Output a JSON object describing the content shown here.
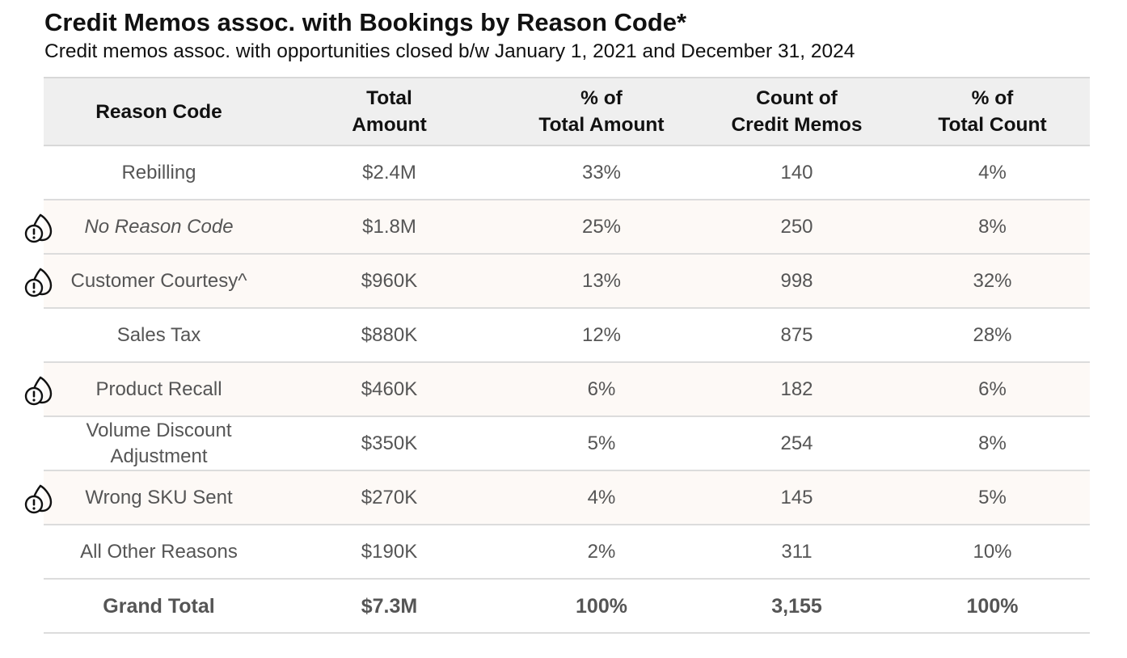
{
  "title": "Credit Memos assoc. with Bookings by Reason Code*",
  "subtitle": "Credit memos assoc. with opportunities closed b/w January 1, 2021 and December 31, 2024",
  "columns": [
    "Reason Code",
    "Total\nAmount",
    "% of\nTotal Amount",
    "Count of\nCredit Memos",
    "% of\nTotal Count"
  ],
  "chart_data": {
    "type": "table",
    "title": "Credit Memos assoc. with Bookings by Reason Code*",
    "subtitle": "Credit memos assoc. with opportunities closed b/w January 1, 2021 and December 31, 2024",
    "columns": [
      "Reason Code",
      "Total Amount",
      "% of Total Amount",
      "Count of Credit Memos",
      "% of Total Count"
    ],
    "rows": [
      {
        "reason": "Rebilling",
        "amount": "$2.4M",
        "pct_amount": "33%",
        "count": "140",
        "pct_count": "4%",
        "flagged": false,
        "italic": false
      },
      {
        "reason": "No Reason Code",
        "amount": "$1.8M",
        "pct_amount": "25%",
        "count": "250",
        "pct_count": "8%",
        "flagged": true,
        "italic": true
      },
      {
        "reason": "Customer Courtesy^",
        "amount": "$960K",
        "pct_amount": "13%",
        "count": "998",
        "pct_count": "32%",
        "flagged": true,
        "italic": false
      },
      {
        "reason": "Sales Tax",
        "amount": "$880K",
        "pct_amount": "12%",
        "count": "875",
        "pct_count": "28%",
        "flagged": false,
        "italic": false
      },
      {
        "reason": "Product Recall",
        "amount": "$460K",
        "pct_amount": "6%",
        "count": "182",
        "pct_count": "6%",
        "flagged": true,
        "italic": false
      },
      {
        "reason": "Volume Discount\nAdjustment",
        "amount": "$350K",
        "pct_amount": "5%",
        "count": "254",
        "pct_count": "8%",
        "flagged": false,
        "italic": false
      },
      {
        "reason": "Wrong SKU Sent",
        "amount": "$270K",
        "pct_amount": "4%",
        "count": "145",
        "pct_count": "5%",
        "flagged": true,
        "italic": false
      },
      {
        "reason": "All Other Reasons",
        "amount": "$190K",
        "pct_amount": "2%",
        "count": "311",
        "pct_count": "10%",
        "flagged": false,
        "italic": false
      }
    ],
    "total": {
      "reason": "Grand Total",
      "amount": "$7.3M",
      "pct_amount": "100%",
      "count": "3,155",
      "pct_count": "100%"
    }
  },
  "colors": {
    "header_bg": "#efefef",
    "flagged_row_bg": "#fdf9f6",
    "text": "#555555",
    "icon": "#111111"
  },
  "icons": {
    "flag": "drop-warning-icon"
  }
}
